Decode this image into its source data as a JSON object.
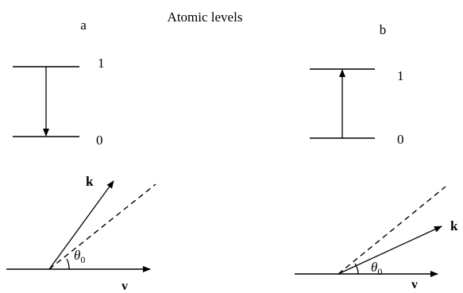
{
  "title": "Atomic levels",
  "panels": [
    {
      "label": "a",
      "upper_level": "1",
      "lower_level": "0",
      "transition": "emission",
      "wave_vector": "k",
      "velocity": "v",
      "angle": "θ",
      "angle_subscript": "0"
    },
    {
      "label": "b",
      "upper_level": "1",
      "lower_level": "0",
      "transition": "absorption",
      "wave_vector": "k",
      "velocity": "v",
      "angle": "θ",
      "angle_subscript": "0"
    }
  ]
}
